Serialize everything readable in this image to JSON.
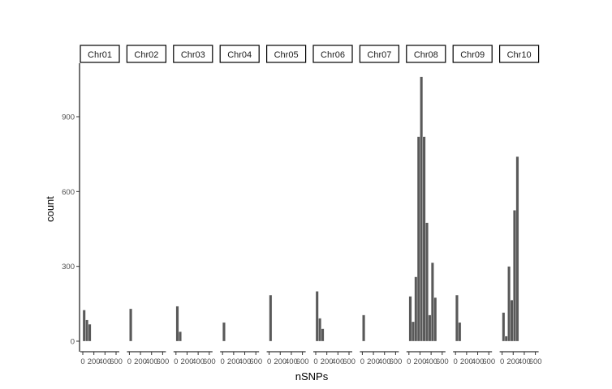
{
  "chart_data": {
    "type": "bar",
    "subtype": "faceted-histogram",
    "xlabel": "nSNPs",
    "ylabel": "count",
    "y_ticks": [
      0,
      300,
      600,
      900
    ],
    "ylim": [
      0,
      1110
    ],
    "x_ticks": [
      0,
      200,
      400,
      600
    ],
    "x_tick_labels": [
      "0",
      "200",
      "400",
      "600"
    ],
    "xlim": [
      0,
      800
    ],
    "bar_color": "#595959",
    "grid": false,
    "legend": "none",
    "facets": [
      {
        "label": "Chr01",
        "bins": [
          {
            "x": 25,
            "count": 125
          },
          {
            "x": 75,
            "count": 85
          },
          {
            "x": 125,
            "count": 68
          }
        ]
      },
      {
        "label": "Chr02",
        "bins": [
          {
            "x": 25,
            "count": 130
          }
        ]
      },
      {
        "label": "Chr03",
        "bins": [
          {
            "x": 25,
            "count": 140
          },
          {
            "x": 75,
            "count": 38
          }
        ]
      },
      {
        "label": "Chr04",
        "bins": [
          {
            "x": 25,
            "count": 75
          }
        ]
      },
      {
        "label": "Chr05",
        "bins": [
          {
            "x": 25,
            "count": 185
          }
        ]
      },
      {
        "label": "Chr06",
        "bins": [
          {
            "x": 25,
            "count": 200
          },
          {
            "x": 75,
            "count": 92
          },
          {
            "x": 125,
            "count": 50
          }
        ]
      },
      {
        "label": "Chr07",
        "bins": [
          {
            "x": 25,
            "count": 105
          }
        ]
      },
      {
        "label": "Chr08",
        "bins": [
          {
            "x": 25,
            "count": 180
          },
          {
            "x": 75,
            "count": 78
          },
          {
            "x": 125,
            "count": 258
          },
          {
            "x": 175,
            "count": 820
          },
          {
            "x": 225,
            "count": 1060
          },
          {
            "x": 275,
            "count": 820
          },
          {
            "x": 325,
            "count": 475
          },
          {
            "x": 375,
            "count": 105
          },
          {
            "x": 425,
            "count": 315
          },
          {
            "x": 475,
            "count": 175
          }
        ]
      },
      {
        "label": "Chr09",
        "bins": [
          {
            "x": 25,
            "count": 185
          },
          {
            "x": 75,
            "count": 75
          }
        ]
      },
      {
        "label": "Chr10",
        "bins": [
          {
            "x": 25,
            "count": 115
          },
          {
            "x": 75,
            "count": 20
          },
          {
            "x": 125,
            "count": 300
          },
          {
            "x": 175,
            "count": 165
          },
          {
            "x": 225,
            "count": 525
          },
          {
            "x": 275,
            "count": 740
          }
        ]
      }
    ]
  }
}
